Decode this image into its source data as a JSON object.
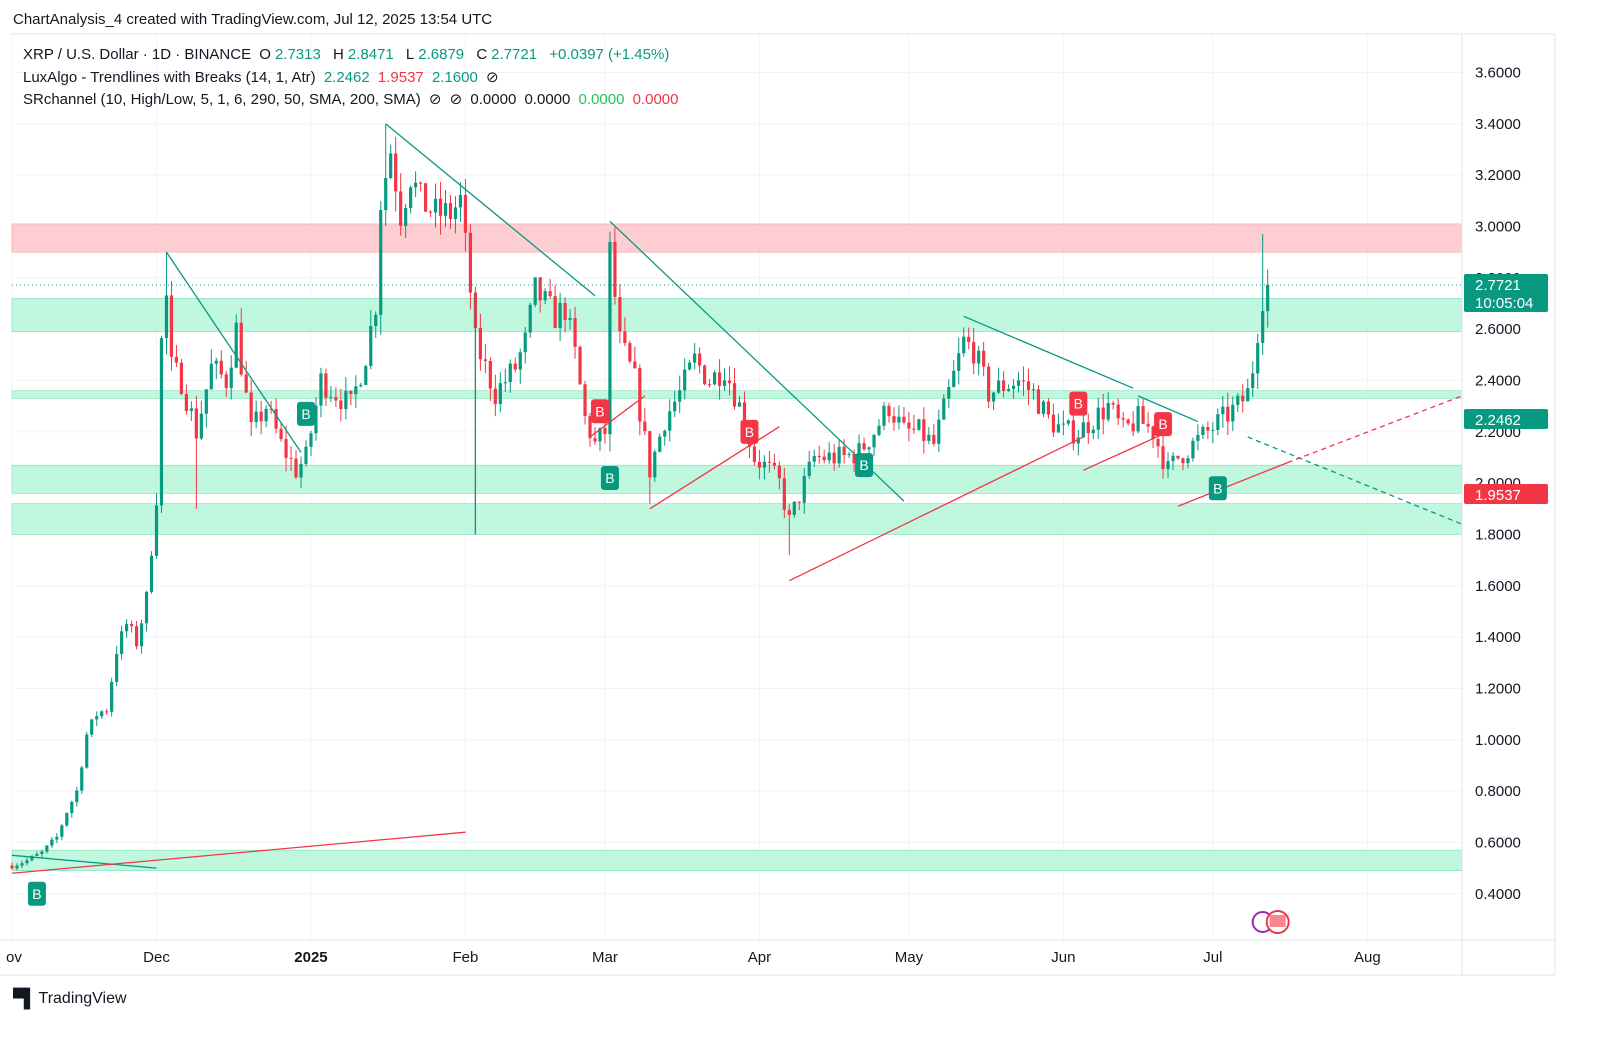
{
  "attribution": "ChartAnalysis_4 created with TradingView.com, Jul 12, 2025 13:54 UTC",
  "header": {
    "symbol": "XRP / U.S. Dollar · 1D · BINANCE",
    "ohlc": {
      "o_label": "O",
      "o": "2.7313",
      "h_label": "H",
      "h": "2.8471",
      "l_label": "L",
      "l": "2.6879",
      "c_label": "C",
      "c": "2.7721",
      "change": "+0.0397 (+1.45%)"
    },
    "indicator1": {
      "name": "LuxAlgo - Trendlines with Breaks (14, 1, Atr)",
      "v1": "2.2462",
      "v2": "1.9537",
      "v3": "2.1600",
      "icon": "eye-off-icon"
    },
    "indicator2": {
      "name": "SRchannel (10, High/Low, 5, 1, 6, 290, 50, SMA, 200, SMA)",
      "v1": "0.0000",
      "v2": "0.0000",
      "v3": "0.0000",
      "v4": "0.0000"
    }
  },
  "brand": "TradingView",
  "colors": {
    "up": "#089981",
    "down": "#f23645",
    "support": "#b9f6dc",
    "resistance": "#fdc9cc"
  },
  "chart_data": {
    "type": "candlestick",
    "y_ticks": [
      "0.4000",
      "0.6000",
      "0.8000",
      "1.0000",
      "1.2000",
      "1.4000",
      "1.6000",
      "1.8000",
      "2.0000",
      "2.2000",
      "2.4000",
      "2.6000",
      "2.8000",
      "3.0000",
      "3.2000",
      "3.4000",
      "3.6000"
    ],
    "ylim": [
      0.22,
      3.75
    ],
    "x_ticks": [
      {
        "date": "2024-11-02",
        "label": "ov"
      },
      {
        "date": "2024-12-01",
        "label": "Dec"
      },
      {
        "date": "2025-01-01",
        "label": "2025",
        "bold": true
      },
      {
        "date": "2025-02-01",
        "label": "Feb"
      },
      {
        "date": "2025-03-01",
        "label": "Mar"
      },
      {
        "date": "2025-04-01",
        "label": "Apr"
      },
      {
        "date": "2025-05-01",
        "label": "May"
      },
      {
        "date": "2025-06-01",
        "label": "Jun"
      },
      {
        "date": "2025-07-01",
        "label": "Jul"
      },
      {
        "date": "2025-08-01",
        "label": "Aug"
      }
    ],
    "xlim": [
      "2024-11-02",
      "2025-08-20"
    ],
    "price_tags": [
      {
        "value": 2.7721,
        "label": "2.7721",
        "sub": "10:05:04",
        "color": "#089981"
      },
      {
        "value": 2.2462,
        "label": "2.2462",
        "color": "#089981"
      },
      {
        "value": 1.9537,
        "label": "1.9537",
        "color": "#f23645"
      }
    ],
    "last_price_line": 2.7721,
    "zones": [
      {
        "from": 2.9,
        "to": 3.01,
        "kind": "resistance"
      },
      {
        "from": 2.59,
        "to": 2.72,
        "kind": "support"
      },
      {
        "from": 2.33,
        "to": 2.36,
        "kind": "support"
      },
      {
        "from": 1.96,
        "to": 2.07,
        "kind": "support"
      },
      {
        "from": 1.8,
        "to": 1.92,
        "kind": "support"
      },
      {
        "from": 0.49,
        "to": 0.57,
        "kind": "support"
      }
    ],
    "trendlines": [
      {
        "x1": "2024-11-02",
        "y1": 0.55,
        "x2": "2024-12-01",
        "y2": 0.5,
        "color": "down-teal"
      },
      {
        "x1": "2024-11-02",
        "y1": 0.48,
        "x2": "2025-02-01",
        "y2": 0.64,
        "color": "up-red"
      },
      {
        "x1": "2024-12-03",
        "y1": 2.9,
        "x2": "2024-12-30",
        "y2": 2.12,
        "color": "down-teal"
      },
      {
        "x1": "2025-01-16",
        "y1": 3.4,
        "x2": "2025-02-27",
        "y2": 2.73,
        "color": "down-teal"
      },
      {
        "x1": "2025-02-03",
        "y1": 1.8,
        "x2": "2025-02-03",
        "y2": 2.73,
        "color": "down-teal"
      },
      {
        "x1": "2025-03-02",
        "y1": 3.02,
        "x2": "2025-04-30",
        "y2": 1.93,
        "color": "down-teal"
      },
      {
        "x1": "2025-02-26",
        "y1": 2.18,
        "x2": "2025-03-09",
        "y2": 2.34,
        "color": "up-red"
      },
      {
        "x1": "2025-03-10",
        "y1": 1.9,
        "x2": "2025-04-05",
        "y2": 2.22,
        "color": "up-red"
      },
      {
        "x1": "2025-04-07",
        "y1": 1.62,
        "x2": "2025-06-05",
        "y2": 2.18,
        "color": "up-red"
      },
      {
        "x1": "2025-05-12",
        "y1": 2.65,
        "x2": "2025-06-15",
        "y2": 2.37,
        "color": "down-teal"
      },
      {
        "x1": "2025-06-05",
        "y1": 2.05,
        "x2": "2025-06-22",
        "y2": 2.2,
        "color": "up-red"
      },
      {
        "x1": "2025-06-16",
        "y1": 2.34,
        "x2": "2025-06-28",
        "y2": 2.24,
        "color": "down-teal"
      },
      {
        "x1": "2025-06-24",
        "y1": 1.91,
        "x2": "2025-07-16",
        "y2": 2.08,
        "color": "up-red"
      },
      {
        "x1": "2025-07-08",
        "y1": 2.18,
        "x2": "2025-08-20",
        "y2": 1.84,
        "color": "down-teal",
        "dashed": true
      },
      {
        "x1": "2025-07-16",
        "y1": 2.08,
        "x2": "2025-08-20",
        "y2": 2.34,
        "color": "up-red",
        "dashed": true
      }
    ],
    "break_labels": [
      {
        "date": "2024-11-07",
        "value": 0.4,
        "label": "B",
        "kind": "up"
      },
      {
        "date": "2024-12-31",
        "value": 2.27,
        "label": "B",
        "kind": "up"
      },
      {
        "date": "2025-02-28",
        "value": 2.28,
        "label": "B",
        "kind": "down"
      },
      {
        "date": "2025-03-02",
        "value": 2.02,
        "label": "B",
        "kind": "up"
      },
      {
        "date": "2025-03-30",
        "value": 2.2,
        "label": "B",
        "kind": "down"
      },
      {
        "date": "2025-04-22",
        "value": 2.07,
        "label": "B",
        "kind": "up"
      },
      {
        "date": "2025-06-04",
        "value": 2.31,
        "label": "B",
        "kind": "down"
      },
      {
        "date": "2025-06-21",
        "value": 2.23,
        "label": "B",
        "kind": "down"
      },
      {
        "date": "2025-07-02",
        "value": 1.98,
        "label": "B",
        "kind": "up"
      }
    ],
    "anchors": [
      [
        "2024-11-02",
        0.51
      ],
      [
        "2024-11-05",
        0.53
      ],
      [
        "2024-11-08",
        0.56
      ],
      [
        "2024-11-11",
        0.62
      ],
      [
        "2024-11-13",
        0.72
      ],
      [
        "2024-11-15",
        0.8
      ],
      [
        "2024-11-17",
        1.02
      ],
      [
        "2024-11-19",
        1.1
      ],
      [
        "2024-11-21",
        1.12
      ],
      [
        "2024-11-23",
        1.35
      ],
      [
        "2024-11-25",
        1.45
      ],
      [
        "2024-11-27",
        1.38
      ],
      [
        "2024-11-29",
        1.55
      ],
      [
        "2024-11-30",
        1.75
      ],
      [
        "2024-12-01",
        1.95
      ],
      [
        "2024-12-02",
        2.55
      ],
      [
        "2024-12-03",
        2.72
      ],
      [
        "2024-12-04",
        2.45
      ],
      [
        "2024-12-06",
        2.4
      ],
      [
        "2024-12-09",
        2.2
      ],
      [
        "2024-12-12",
        2.45
      ],
      [
        "2024-12-15",
        2.4
      ],
      [
        "2024-12-17",
        2.6
      ],
      [
        "2024-12-20",
        2.2
      ],
      [
        "2024-12-23",
        2.3
      ],
      [
        "2024-12-26",
        2.15
      ],
      [
        "2024-12-29",
        2.05
      ],
      [
        "2024-12-31",
        2.1
      ],
      [
        "2025-01-03",
        2.4
      ],
      [
        "2025-01-06",
        2.35
      ],
      [
        "2025-01-09",
        2.3
      ],
      [
        "2025-01-12",
        2.5
      ],
      [
        "2025-01-14",
        2.7
      ],
      [
        "2025-01-15",
        3.1
      ],
      [
        "2025-01-17",
        3.3
      ],
      [
        "2025-01-19",
        3.05
      ],
      [
        "2025-01-21",
        3.2
      ],
      [
        "2025-01-23",
        3.1
      ],
      [
        "2025-01-26",
        3.05
      ],
      [
        "2025-01-29",
        3.05
      ],
      [
        "2025-01-31",
        3.1
      ],
      [
        "2025-02-02",
        2.75
      ],
      [
        "2025-02-03",
        2.55
      ],
      [
        "2025-02-05",
        2.45
      ],
      [
        "2025-02-07",
        2.35
      ],
      [
        "2025-02-09",
        2.4
      ],
      [
        "2025-02-11",
        2.45
      ],
      [
        "2025-02-13",
        2.55
      ],
      [
        "2025-02-15",
        2.75
      ],
      [
        "2025-02-17",
        2.7
      ],
      [
        "2025-02-19",
        2.65
      ],
      [
        "2025-02-21",
        2.68
      ],
      [
        "2025-02-23",
        2.5
      ],
      [
        "2025-02-25",
        2.25
      ],
      [
        "2025-02-27",
        2.15
      ],
      [
        "2025-03-01",
        2.2
      ],
      [
        "2025-03-02",
        2.9
      ],
      [
        "2025-03-04",
        2.55
      ],
      [
        "2025-03-07",
        2.4
      ],
      [
        "2025-03-10",
        2.05
      ],
      [
        "2025-03-13",
        2.25
      ],
      [
        "2025-03-16",
        2.35
      ],
      [
        "2025-03-19",
        2.48
      ],
      [
        "2025-03-22",
        2.4
      ],
      [
        "2025-03-25",
        2.45
      ],
      [
        "2025-03-28",
        2.3
      ],
      [
        "2025-03-31",
        2.1
      ],
      [
        "2025-04-03",
        2.05
      ],
      [
        "2025-04-05",
        2.0
      ],
      [
        "2025-04-07",
        1.85
      ],
      [
        "2025-04-09",
        1.95
      ],
      [
        "2025-04-12",
        2.1
      ],
      [
        "2025-04-15",
        2.1
      ],
      [
        "2025-04-18",
        2.1
      ],
      [
        "2025-04-21",
        2.12
      ],
      [
        "2025-04-24",
        2.2
      ],
      [
        "2025-04-27",
        2.3
      ],
      [
        "2025-04-30",
        2.2
      ],
      [
        "2025-05-03",
        2.2
      ],
      [
        "2025-05-06",
        2.15
      ],
      [
        "2025-05-09",
        2.35
      ],
      [
        "2025-05-12",
        2.55
      ],
      [
        "2025-05-14",
        2.52
      ],
      [
        "2025-05-17",
        2.35
      ],
      [
        "2025-05-20",
        2.38
      ],
      [
        "2025-05-23",
        2.4
      ],
      [
        "2025-05-26",
        2.35
      ],
      [
        "2025-05-29",
        2.25
      ],
      [
        "2025-06-01",
        2.2
      ],
      [
        "2025-06-04",
        2.2
      ],
      [
        "2025-06-07",
        2.25
      ],
      [
        "2025-06-10",
        2.3
      ],
      [
        "2025-06-13",
        2.2
      ],
      [
        "2025-06-16",
        2.25
      ],
      [
        "2025-06-19",
        2.2
      ],
      [
        "2025-06-22",
        2.05
      ],
      [
        "2025-06-24",
        2.1
      ],
      [
        "2025-06-27",
        2.15
      ],
      [
        "2025-06-30",
        2.2
      ],
      [
        "2025-07-03",
        2.25
      ],
      [
        "2025-07-06",
        2.3
      ],
      [
        "2025-07-08",
        2.35
      ],
      [
        "2025-07-09",
        2.45
      ],
      [
        "2025-07-10",
        2.6
      ],
      [
        "2025-07-11",
        2.73
      ],
      [
        "2025-07-12",
        2.77
      ]
    ]
  }
}
